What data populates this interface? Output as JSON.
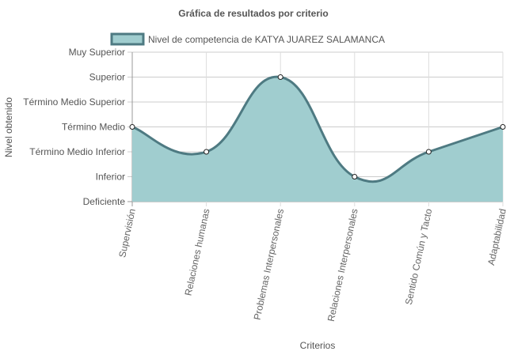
{
  "chart_data": {
    "type": "area",
    "title": "Gráfica de resultados por criterio",
    "xlabel": "Criterios",
    "ylabel": "Nivel obtenido",
    "y_levels": [
      "Deficiente",
      "Inferior",
      "Término Medio Inferior",
      "Término Medio",
      "Término Medio Superior",
      "Superior",
      "Muy Superior"
    ],
    "ylim": [
      0,
      6
    ],
    "categories": [
      "Supervisión",
      "Relaciones humanas",
      "Problemas Interpersonales",
      "Relaciones Interpersonales",
      "Sentido Común y Tacto",
      "Adaptabilidad"
    ],
    "series": [
      {
        "name": "Nivel de competencia de KATYA JUAREZ SALAMANCA",
        "values": [
          3,
          2,
          5,
          1,
          2,
          3
        ],
        "fill_color": "#a0cdcf",
        "line_color": "#4e7a82"
      }
    ],
    "grid": true,
    "legend_position": "top"
  }
}
